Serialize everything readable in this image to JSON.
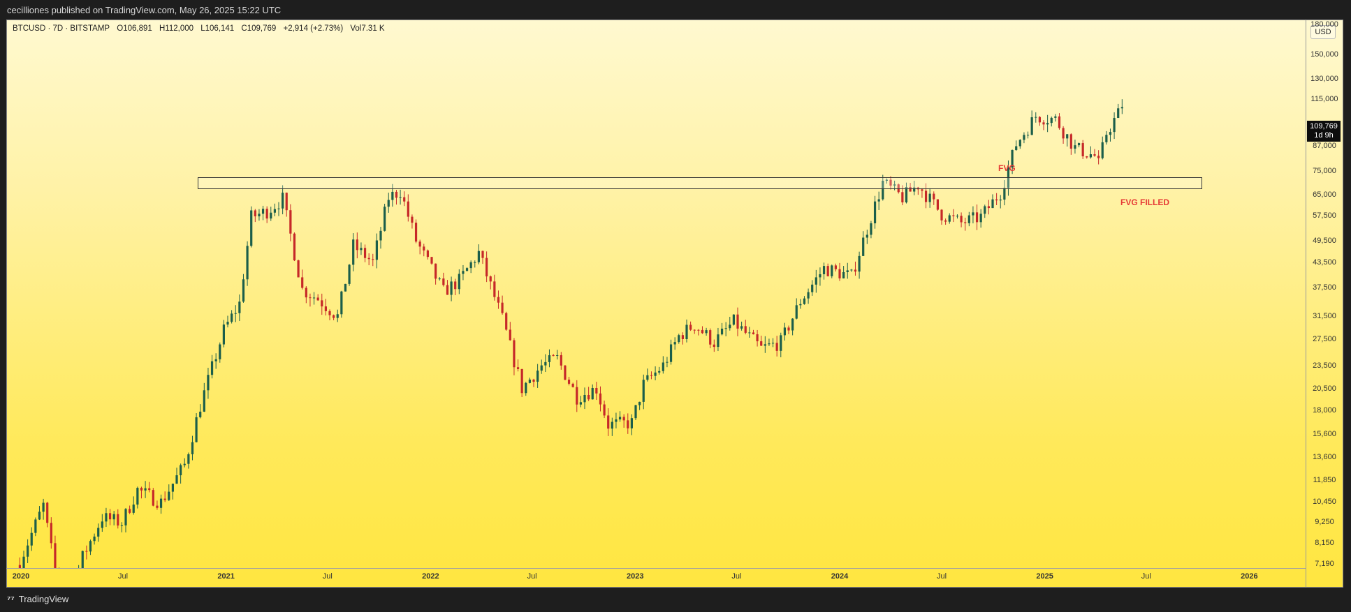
{
  "publish_line": "cecilliones published on TradingView.com, May 26, 2025 15:22 UTC",
  "header": {
    "symbol": "BTCUSD · 7D · BITSTAMP",
    "open": "O106,891",
    "high": "H112,000",
    "low": "L106,141",
    "close": "C109,769",
    "change": "+2,914 (+2.73%)",
    "volume": "Vol7.31 K"
  },
  "currency": "USD",
  "last_price": {
    "value": "109,769",
    "countdown": "1d 9h"
  },
  "annotations": {
    "fvg": "FVG",
    "fvg_filled": "FVG FILLED"
  },
  "footer": {
    "logo": "TradingView"
  },
  "colors": {
    "up": "#1b5e4a",
    "down": "#c62828",
    "accent": "#e53935"
  },
  "chart_data": {
    "type": "candlestick",
    "scale": "log",
    "y_ticks": [
      "180,000",
      "150,000",
      "130,000",
      "115,000",
      "99,000",
      "87,000",
      "75,000",
      "65,000",
      "57,500",
      "49,500",
      "43,500",
      "37,500",
      "31,500",
      "27,500",
      "23,500",
      "20,500",
      "18,000",
      "15,600",
      "13,600",
      "11,850",
      "10,450",
      "9,250",
      "8,150",
      "7,190"
    ],
    "x_ticks": [
      {
        "label": "2020",
        "date": "2020-01-01",
        "bold": true
      },
      {
        "label": "Jul",
        "date": "2020-07-01",
        "bold": false
      },
      {
        "label": "2021",
        "date": "2021-01-01",
        "bold": true
      },
      {
        "label": "Jul",
        "date": "2021-07-01",
        "bold": false
      },
      {
        "label": "2022",
        "date": "2022-01-01",
        "bold": true
      },
      {
        "label": "Jul",
        "date": "2022-07-01",
        "bold": false
      },
      {
        "label": "2023",
        "date": "2023-01-01",
        "bold": true
      },
      {
        "label": "Jul",
        "date": "2023-07-01",
        "bold": false
      },
      {
        "label": "2024",
        "date": "2024-01-01",
        "bold": true
      },
      {
        "label": "Jul",
        "date": "2024-07-01",
        "bold": false
      },
      {
        "label": "2025",
        "date": "2025-01-01",
        "bold": true
      },
      {
        "label": "Jul",
        "date": "2025-07-01",
        "bold": false
      },
      {
        "label": "2026",
        "date": "2026-01-01",
        "bold": true
      }
    ],
    "fvg_zone": {
      "low": 73500,
      "high": 80500,
      "start": "2020-11-01",
      "end": "2025-08-15"
    },
    "close_path": [
      [
        "2019-12-30",
        7300
      ],
      [
        "2020-02-10",
        10200
      ],
      [
        "2020-03-16",
        5300
      ],
      [
        "2020-04-20",
        7500
      ],
      [
        "2020-05-25",
        9500
      ],
      [
        "2020-06-29",
        9200
      ],
      [
        "2020-07-27",
        11200
      ],
      [
        "2020-09-07",
        10400
      ],
      [
        "2020-10-19",
        13000
      ],
      [
        "2020-11-16",
        18500
      ],
      [
        "2020-12-28",
        29000
      ],
      [
        "2021-01-25",
        34000
      ],
      [
        "2021-02-15",
        57000
      ],
      [
        "2021-03-15",
        59000
      ],
      [
        "2021-04-12",
        63500
      ],
      [
        "2021-05-17",
        37000
      ],
      [
        "2021-06-14",
        35000
      ],
      [
        "2021-07-19",
        31500
      ],
      [
        "2021-08-16",
        48000
      ],
      [
        "2021-09-20",
        43500
      ],
      [
        "2021-10-18",
        64000
      ],
      [
        "2021-11-08",
        66500
      ],
      [
        "2021-12-06",
        49500
      ],
      [
        "2022-01-24",
        36500
      ],
      [
        "2022-02-21",
        39000
      ],
      [
        "2022-03-28",
        46000
      ],
      [
        "2022-05-09",
        31000
      ],
      [
        "2022-06-13",
        20500
      ],
      [
        "2022-07-18",
        23500
      ],
      [
        "2022-08-15",
        24500
      ],
      [
        "2022-09-19",
        19500
      ],
      [
        "2022-10-24",
        20500
      ],
      [
        "2022-11-14",
        16500
      ],
      [
        "2022-12-26",
        16700
      ],
      [
        "2023-01-16",
        21000
      ],
      [
        "2023-02-20",
        23500
      ],
      [
        "2023-03-20",
        28000
      ],
      [
        "2023-04-17",
        30000
      ],
      [
        "2023-05-22",
        27000
      ],
      [
        "2023-06-26",
        30500
      ],
      [
        "2023-08-14",
        26000
      ],
      [
        "2023-09-18",
        27000
      ],
      [
        "2023-10-23",
        34500
      ],
      [
        "2023-12-04",
        42000
      ],
      [
        "2024-01-22",
        40000
      ],
      [
        "2024-02-26",
        57000
      ],
      [
        "2024-03-18",
        70000
      ],
      [
        "2024-04-22",
        64000
      ],
      [
        "2024-05-20",
        69000
      ],
      [
        "2024-07-01",
        58000
      ],
      [
        "2024-08-05",
        55000
      ],
      [
        "2024-09-09",
        57000
      ],
      [
        "2024-10-14",
        66000
      ],
      [
        "2024-11-11",
        88000
      ],
      [
        "2024-12-16",
        104000
      ],
      [
        "2025-01-20",
        102000
      ],
      [
        "2025-02-24",
        86000
      ],
      [
        "2025-03-31",
        82000
      ],
      [
        "2025-04-07",
        78000
      ],
      [
        "2025-04-21",
        94000
      ],
      [
        "2025-05-19",
        109769
      ]
    ]
  }
}
